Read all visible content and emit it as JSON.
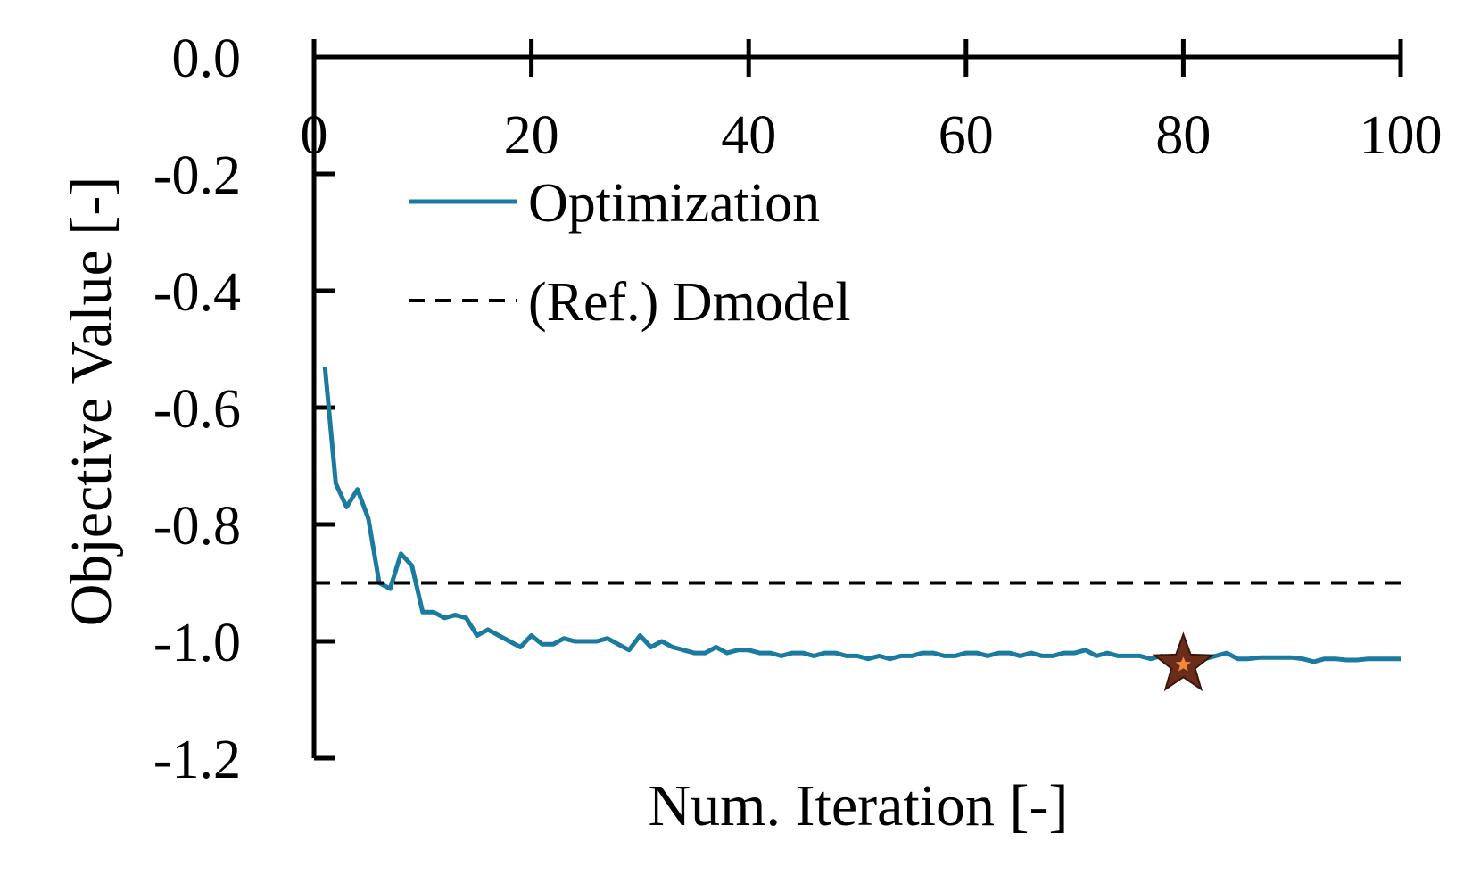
{
  "chart_data": {
    "type": "line",
    "xlabel": "Num. Iteration [-]",
    "ylabel": "Objective Value [-]",
    "xlim": [
      0,
      100
    ],
    "ylim": [
      -1.2,
      0.0
    ],
    "x_ticks": [
      0,
      20,
      40,
      60,
      80,
      100
    ],
    "x_tick_labels": [
      "0",
      "20",
      "40",
      "60",
      "80",
      "100"
    ],
    "y_ticks": [
      0.0,
      -0.2,
      -0.4,
      -0.6,
      -0.8,
      -1.0,
      -1.2
    ],
    "y_tick_labels": [
      "0.0",
      "-0.2",
      "-0.4",
      "-0.6",
      "-0.8",
      "-1.0",
      "-1.2"
    ],
    "x_axis_position": "top",
    "grid": false,
    "legend_position": "upper-left",
    "colors": {
      "optimization": "#1a7aa0",
      "reference": "#000000",
      "best_marker_fill": "#6b2d1a",
      "best_marker_inner": "#f08a3c"
    },
    "series": [
      {
        "name": "Optimization",
        "style": "solid",
        "x": [
          1,
          2,
          3,
          4,
          5,
          6,
          7,
          8,
          9,
          10,
          11,
          12,
          13,
          14,
          15,
          16,
          17,
          18,
          19,
          20,
          21,
          22,
          23,
          24,
          25,
          26,
          27,
          28,
          29,
          30,
          31,
          32,
          33,
          34,
          35,
          36,
          37,
          38,
          39,
          40,
          41,
          42,
          43,
          44,
          45,
          46,
          47,
          48,
          49,
          50,
          51,
          52,
          53,
          54,
          55,
          56,
          57,
          58,
          59,
          60,
          61,
          62,
          63,
          64,
          65,
          66,
          67,
          68,
          69,
          70,
          71,
          72,
          73,
          74,
          75,
          76,
          77,
          78,
          79,
          80,
          81,
          82,
          83,
          84,
          85,
          86,
          87,
          88,
          89,
          90,
          91,
          92,
          93,
          94,
          95,
          96,
          97,
          98,
          99,
          100
        ],
        "values": [
          -0.53,
          -0.73,
          -0.77,
          -0.74,
          -0.79,
          -0.9,
          -0.91,
          -0.85,
          -0.87,
          -0.95,
          -0.95,
          -0.96,
          -0.955,
          -0.96,
          -0.99,
          -0.98,
          -0.99,
          -1.0,
          -1.01,
          -0.99,
          -1.005,
          -1.005,
          -0.995,
          -1.0,
          -1.0,
          -1.0,
          -0.995,
          -1.005,
          -1.015,
          -0.99,
          -1.01,
          -1.0,
          -1.01,
          -1.015,
          -1.02,
          -1.02,
          -1.01,
          -1.02,
          -1.015,
          -1.015,
          -1.02,
          -1.02,
          -1.025,
          -1.02,
          -1.02,
          -1.025,
          -1.02,
          -1.02,
          -1.025,
          -1.025,
          -1.03,
          -1.025,
          -1.03,
          -1.025,
          -1.025,
          -1.02,
          -1.02,
          -1.025,
          -1.025,
          -1.02,
          -1.02,
          -1.025,
          -1.02,
          -1.02,
          -1.025,
          -1.02,
          -1.025,
          -1.025,
          -1.02,
          -1.02,
          -1.015,
          -1.025,
          -1.02,
          -1.025,
          -1.025,
          -1.025,
          -1.03,
          -1.025,
          -1.03,
          -1.035,
          -1.03,
          -1.03,
          -1.025,
          -1.02,
          -1.03,
          -1.03,
          -1.028,
          -1.028,
          -1.028,
          -1.028,
          -1.03,
          -1.035,
          -1.03,
          -1.03,
          -1.032,
          -1.032,
          -1.03,
          -1.03,
          -1.03,
          -1.03
        ]
      },
      {
        "name": "(Ref.) Dmodel",
        "style": "dashed",
        "x": [
          0,
          100
        ],
        "values": [
          -0.9,
          -0.9
        ]
      }
    ],
    "best_point": {
      "x": 80,
      "y": -1.04,
      "marker": "star"
    }
  }
}
